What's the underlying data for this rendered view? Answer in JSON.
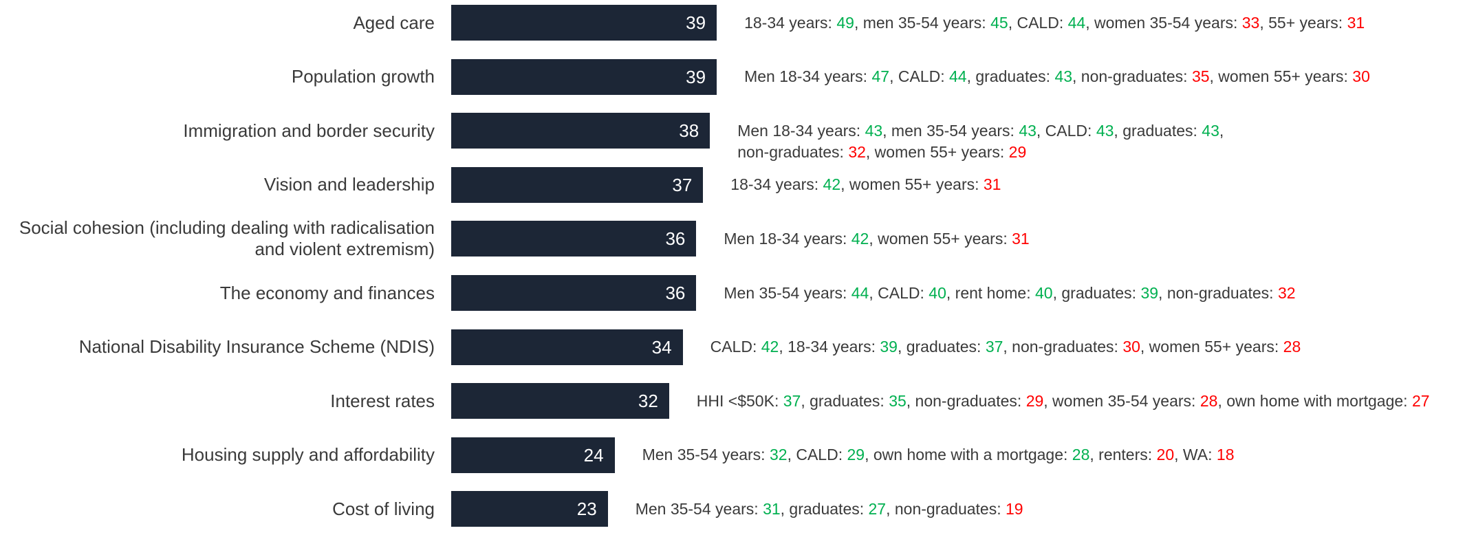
{
  "chart_data": {
    "type": "bar",
    "orientation": "horizontal",
    "color": "#1c2636",
    "value_label_color": "#ffffff",
    "categories": [
      "Aged care",
      "Population growth",
      "Immigration and border security",
      "Vision and leadership",
      "Social cohesion (including dealing with radicalisation and violent extremism)",
      "The economy and finances",
      "National Disability Insurance Scheme (NDIS)",
      "Interest rates",
      "Housing supply and affordability",
      "Cost of living"
    ],
    "values": [
      39,
      39,
      38,
      37,
      36,
      36,
      34,
      32,
      24,
      23
    ],
    "annotations": [
      [
        [
          {
            "label": "18-34 years: ",
            "value": 49,
            "color": "#00b050"
          },
          {
            "label": ",  men 35-54 years: ",
            "value": 45,
            "color": "#00b050"
          },
          {
            "label": ", CALD: ",
            "value": 44,
            "color": "#00b050"
          },
          {
            "label": ", women 35-54 years: ",
            "value": 33,
            "color": "#ff0000"
          },
          {
            "label": ", 55+ years: ",
            "value": 31,
            "color": "#ff0000"
          }
        ]
      ],
      [
        [
          {
            "label": "Men 18-34 years: ",
            "value": 47,
            "color": "#00b050"
          },
          {
            "label": ", CALD: ",
            "value": 44,
            "color": "#00b050"
          },
          {
            "label": ", graduates: ",
            "value": 43,
            "color": "#00b050"
          },
          {
            "label": ", non-graduates: ",
            "value": 35,
            "color": "#ff0000"
          },
          {
            "label": ", women 55+ years: ",
            "value": 30,
            "color": "#ff0000"
          }
        ]
      ],
      [
        [
          {
            "label": "Men 18-34 years: ",
            "value": 43,
            "color": "#00b050"
          },
          {
            "label": ", men 35-54 years: ",
            "value": 43,
            "color": "#00b050"
          },
          {
            "label": ", CALD: ",
            "value": 43,
            "color": "#00b050"
          },
          {
            "label": ", graduates: ",
            "value": 43,
            "color": "#00b050"
          },
          {
            "label": ",",
            "value": null,
            "color": null
          }
        ],
        [
          {
            "label": "non-graduates: ",
            "value": 32,
            "color": "#ff0000"
          },
          {
            "label": ", women 55+ years: ",
            "value": 29,
            "color": "#ff0000"
          }
        ]
      ],
      [
        [
          {
            "label": "18-34 years: ",
            "value": 42,
            "color": "#00b050"
          },
          {
            "label": ", women 55+ years: ",
            "value": 31,
            "color": "#ff0000"
          }
        ]
      ],
      [
        [
          {
            "label": "Men 18-34 years: ",
            "value": 42,
            "color": "#00b050"
          },
          {
            "label": ", women 55+ years: ",
            "value": 31,
            "color": "#ff0000"
          }
        ]
      ],
      [
        [
          {
            "label": "Men 35-54 years: ",
            "value": 44,
            "color": "#00b050"
          },
          {
            "label": ", CALD: ",
            "value": 40,
            "color": "#00b050"
          },
          {
            "label": ", rent home: ",
            "value": 40,
            "color": "#00b050"
          },
          {
            "label": ",  graduates: ",
            "value": 39,
            "color": "#00b050"
          },
          {
            "label": ", non-graduates: ",
            "value": 32,
            "color": "#ff0000"
          }
        ]
      ],
      [
        [
          {
            "label": "CALD: ",
            "value": 42,
            "color": "#00b050"
          },
          {
            "label": ", 18-34 years: ",
            "value": 39,
            "color": "#00b050"
          },
          {
            "label": ", graduates: ",
            "value": 37,
            "color": "#00b050"
          },
          {
            "label": ", non-graduates: ",
            "value": 30,
            "color": "#ff0000"
          },
          {
            "label": ",  women 55+ years: ",
            "value": 28,
            "color": "#ff0000"
          }
        ]
      ],
      [
        [
          {
            "label": "HHI <$50K: ",
            "value": 37,
            "color": "#00b050"
          },
          {
            "label": ", graduates: ",
            "value": 35,
            "color": "#00b050"
          },
          {
            "label": ", non-graduates: ",
            "value": 29,
            "color": "#ff0000"
          },
          {
            "label": ", women 35-54 years: ",
            "value": 28,
            "color": "#ff0000"
          },
          {
            "label": ", own home with mortgage: ",
            "value": 27,
            "color": "#ff0000"
          }
        ]
      ],
      [
        [
          {
            "label": "Men 35-54 years: ",
            "value": 32,
            "color": "#00b050"
          },
          {
            "label": ", CALD: ",
            "value": 29,
            "color": "#00b050"
          },
          {
            "label": ", own home with a mortgage: ",
            "value": 28,
            "color": "#00b050"
          },
          {
            "label": ", renters: ",
            "value": 20,
            "color": "#ff0000"
          },
          {
            "label": ", WA: ",
            "value": 18,
            "color": "#ff0000"
          }
        ]
      ],
      [
        [
          {
            "label": "Men 35-54 years: ",
            "value": 31,
            "color": "#00b050"
          },
          {
            "label": ", graduates: ",
            "value": 27,
            "color": "#00b050"
          },
          {
            "label": ", non-graduates: ",
            "value": 19,
            "color": "#ff0000"
          }
        ]
      ]
    ]
  }
}
